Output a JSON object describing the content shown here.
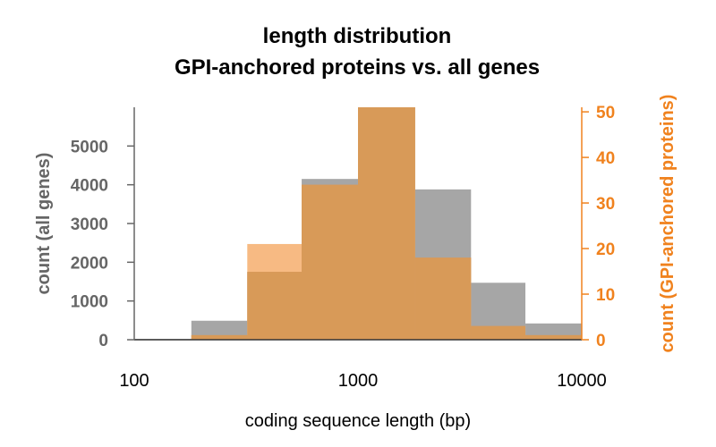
{
  "chart_data": {
    "type": "bar",
    "title_lines": [
      "length distribution",
      "GPI-anchored proteins vs. all genes"
    ],
    "xlabel": "coding sequence length (bp)",
    "ylabel_left": "count (all genes)",
    "ylabel_right": "count (GPI-anchored proteins)",
    "x_scale": "log",
    "xlim": [
      100,
      10000
    ],
    "x_ticks": [
      "100",
      "1000",
      "10000"
    ],
    "ylim_left": [
      0,
      6000
    ],
    "y_ticks_left": [
      "0",
      "1000",
      "2000",
      "3000",
      "4000",
      "5000"
    ],
    "ylim_right": [
      0,
      51
    ],
    "y_ticks_right": [
      "0",
      "10",
      "20",
      "30",
      "40",
      "50"
    ],
    "bin_edges": [
      100,
      180,
      320,
      560,
      1000,
      1800,
      3200,
      5600,
      10000
    ],
    "series": [
      {
        "name": "all genes",
        "axis": "left",
        "color": "#a6a6a6",
        "values": [
          20,
          490,
          1750,
          4150,
          6000,
          3880,
          1470,
          420
        ]
      },
      {
        "name": "GPI-anchored proteins",
        "axis": "right",
        "color": "#f0821e",
        "values": [
          0,
          1,
          21,
          34,
          51,
          18,
          3,
          1
        ]
      }
    ],
    "overlap_color": "#d89a58"
  }
}
